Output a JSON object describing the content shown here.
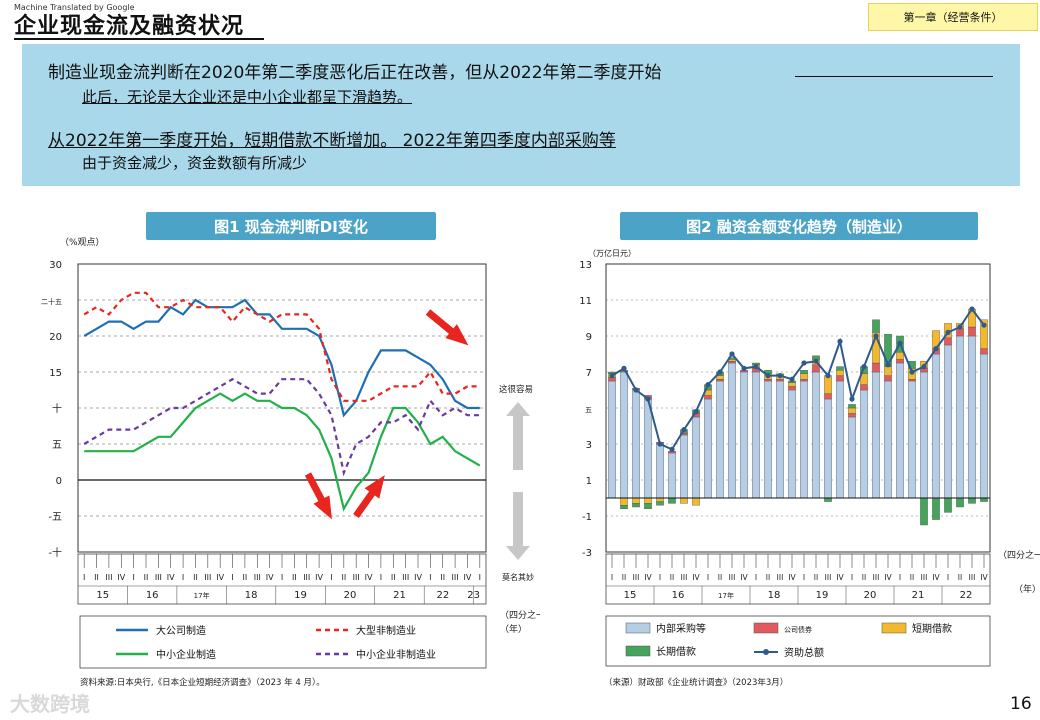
{
  "header": {
    "machine_translated": "Machine Translated by Google",
    "title": "企业现金流及融资状况",
    "chapter": "第一章（经营条件）"
  },
  "summary": {
    "line1": "制造业现金流判断在2020年第二季度恶化后正在改善，但从2022年第二季度开始",
    "line2": "此后，无论是大企业还是中小企业都呈下滑趋势。",
    "line3": "从2022年第一季度开始，短期借款不断增加。 2022年第四季度内部采购等",
    "line4": "由于资金减少，资金数额有所减少"
  },
  "chart_data": [
    {
      "type": "line",
      "title": "图1 现金流判断DI变化",
      "ylabel": "（%观点）",
      "ylim": [
        -10,
        30
      ],
      "y_tick_labels": [
        "30",
        "二十五",
        "20",
        "15",
        "十",
        "五",
        "0",
        "-五",
        "-十"
      ],
      "y_tick_values": [
        30,
        25,
        20,
        15,
        10,
        5,
        0,
        -5,
        -10
      ],
      "quarter_labels": [
        "I",
        "II",
        "III",
        "IV",
        "I",
        "II",
        "III",
        "IV",
        "I",
        "II",
        "III",
        "IV",
        "I",
        "II",
        "III",
        "IV",
        "I",
        "II",
        "III",
        "IV",
        "I",
        "II",
        "III",
        "IV",
        "I",
        "II",
        "III",
        "IV",
        "I",
        "II",
        "III",
        "IV",
        "I"
      ],
      "year_labels": [
        "15",
        "16",
        "17年",
        "18",
        "19",
        "20",
        "21",
        "22",
        "23"
      ],
      "xlabel": "（四分之一）\n（年）",
      "annotation_up": "这很容易",
      "annotation_down": "莫名其妙",
      "series": [
        {
          "name": "大公司制造",
          "color": "#1f6fb2",
          "dash": "",
          "values": [
            20,
            21,
            22,
            22,
            21,
            22,
            22,
            24,
            23,
            25,
            24,
            24,
            24,
            25,
            23,
            23,
            21,
            21,
            21,
            20,
            16,
            9,
            11,
            15,
            18,
            18,
            18,
            17,
            16,
            14,
            11,
            10,
            10
          ]
        },
        {
          "name": "大型非制造业",
          "color": "#e8251f",
          "dash": "5,4",
          "values": [
            23,
            24,
            23,
            25,
            26,
            26,
            24,
            24,
            25,
            24,
            24,
            24,
            22,
            24,
            23,
            22,
            23,
            23,
            23,
            21,
            14,
            11,
            11,
            11,
            12,
            13,
            13,
            13,
            15,
            12,
            12,
            13,
            13
          ]
        },
        {
          "name": "中小企业制造",
          "color": "#22b04b",
          "dash": "",
          "values": [
            4,
            4,
            4,
            4,
            4,
            5,
            6,
            6,
            8,
            10,
            11,
            12,
            11,
            12,
            11,
            11,
            10,
            10,
            9,
            7,
            3,
            -4,
            -1,
            1,
            6,
            10,
            10,
            8,
            5,
            6,
            4,
            3,
            2
          ]
        },
        {
          "name": "中小企业非制造业",
          "color": "#6a3a9e",
          "dash": "5,4",
          "values": [
            5,
            6,
            7,
            7,
            7,
            8,
            9,
            10,
            10,
            11,
            12,
            13,
            14,
            13,
            12,
            12,
            14,
            14,
            14,
            12,
            9,
            1,
            5,
            6,
            8,
            8,
            9,
            7,
            11,
            9,
            10,
            9,
            9
          ]
        }
      ],
      "source": "资料来源:日本央行,《日本企业短期经济调查》（2023 年 4 月）。"
    },
    {
      "type": "bar",
      "title": "图2 融资金额变化趋势（制造业）",
      "ylabel": "（万亿日元）",
      "ylim": [
        -3,
        13
      ],
      "y_tick_labels": [
        "13",
        "11",
        "9",
        "7",
        "五",
        "3",
        "1",
        "-1",
        "-3"
      ],
      "y_tick_values": [
        13,
        11,
        9,
        7,
        5,
        3,
        1,
        -1,
        -3
      ],
      "quarter_labels": [
        "I",
        "II",
        "III",
        "IV",
        "I",
        "II",
        "III",
        "IV",
        "I",
        "II",
        "III",
        "IV",
        "I",
        "II",
        "III",
        "IV",
        "I",
        "II",
        "III",
        "IV",
        "I",
        "II",
        "III",
        "IV",
        "I",
        "II",
        "III",
        "IV",
        "I",
        "II",
        "III",
        "IV"
      ],
      "year_labels": [
        "15",
        "16",
        "17年",
        "18",
        "19",
        "20",
        "21",
        "22"
      ],
      "xlabel": "（四分之一）\n（年）",
      "series": [
        {
          "name": "内部采购等",
          "color": "#b6cde6",
          "values": [
            6.5,
            7.0,
            6.0,
            5.5,
            3.0,
            2.5,
            3.5,
            4.5,
            5.5,
            6.5,
            7.5,
            7.0,
            7.0,
            6.5,
            6.5,
            6.0,
            6.5,
            7.0,
            5.5,
            6.5,
            4.5,
            6.0,
            7.0,
            6.5,
            7.5,
            6.5,
            7.0,
            8.0,
            8.5,
            9.0,
            9.0,
            8.0
          ]
        },
        {
          "name": "公司债券",
          "color": "#e25a60",
          "values": [
            0.2,
            0.1,
            0.1,
            0.2,
            0.1,
            0.1,
            0.1,
            0.2,
            0.2,
            0.1,
            0.1,
            0.1,
            0.2,
            0.1,
            0.1,
            0.2,
            0.1,
            0.4,
            0.3,
            0.3,
            0.2,
            0.3,
            0.5,
            0.3,
            0.2,
            0.1,
            0.2,
            0.3,
            0.4,
            0.4,
            0.5,
            0.3
          ]
        },
        {
          "name": "短期借款",
          "color": "#f3b92c",
          "values": [
            0.2,
            -0.4,
            -0.3,
            -0.3,
            -0.2,
            0.0,
            -0.3,
            -0.4,
            0.3,
            0.2,
            0.1,
            0.0,
            0.2,
            0.3,
            0.2,
            0.2,
            0.3,
            0.3,
            1.0,
            0.3,
            0.3,
            0.6,
            1.7,
            0.5,
            0.4,
            0.6,
            0.4,
            1.0,
            0.8,
            0.3,
            1.0,
            1.6
          ]
        },
        {
          "name": "长期借款",
          "color": "#46a35c",
          "values": [
            0.1,
            -0.2,
            -0.2,
            -0.3,
            -0.2,
            -0.3,
            0.2,
            0.2,
            0.3,
            0.2,
            0.1,
            0.0,
            0.1,
            0.2,
            0.1,
            0.1,
            0.2,
            0.2,
            -0.2,
            0.2,
            0.2,
            0.4,
            0.7,
            1.8,
            0.9,
            0.4,
            -1.5,
            -1.2,
            -0.8,
            -0.5,
            -0.3,
            -0.2
          ]
        }
      ],
      "total_series": {
        "name": "资助总额",
        "color": "#2e5a8c",
        "values": [
          6.8,
          7.2,
          6.0,
          5.5,
          3.0,
          2.7,
          3.8,
          4.8,
          6.3,
          7.0,
          8.0,
          7.2,
          7.3,
          6.8,
          6.8,
          6.6,
          7.5,
          7.6,
          6.8,
          8.7,
          5.5,
          7.3,
          9.0,
          7.4,
          8.6,
          7.0,
          7.3,
          8.3,
          9.2,
          9.5,
          10.5,
          9.6
        ]
      },
      "source": "（来源）财政部《企业统计调查》（2023年3月）"
    }
  ],
  "footer": {
    "watermark": "大数跨境",
    "page_number": "16"
  }
}
